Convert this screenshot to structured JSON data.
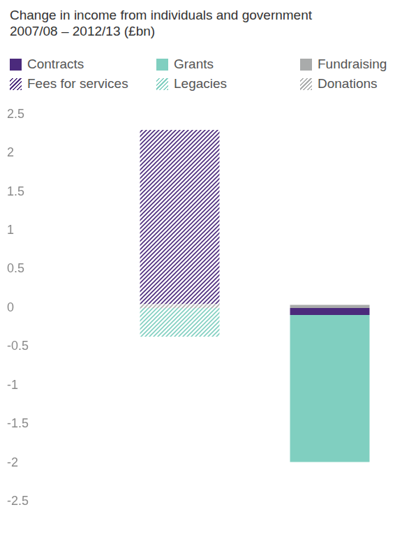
{
  "chart_data": {
    "type": "bar",
    "title": "Change in income from individuals and government 2007/08 – 2012/13 (£bn)",
    "categories": [
      null,
      null
    ],
    "series": [
      {
        "name": "Contracts",
        "color": "#4b2a7c",
        "values": [
          null,
          -0.09
        ]
      },
      {
        "name": "Fees for services",
        "color": "#4b2a7c",
        "line_style": "hatched",
        "values": [
          2.25,
          null
        ]
      },
      {
        "name": "Grants",
        "color": "#80cfc0",
        "values": [
          null,
          -1.9
        ]
      },
      {
        "name": "Legacies",
        "color": "#80cfc0",
        "line_style": "hatched",
        "values": [
          -0.37,
          null
        ]
      },
      {
        "name": "Fundraising",
        "color": "#a9abab",
        "values": [
          null,
          0.04
        ]
      },
      {
        "name": "Donations",
        "color": "#a9abab",
        "line_style": "hatched",
        "values": [
          0.05,
          null
        ]
      }
    ],
    "ylim": [
      -2.5,
      2.5
    ],
    "yticks": [
      -2.5,
      -2,
      -1.5,
      -1,
      -0.5,
      0,
      0.5,
      1,
      1.5,
      2,
      2.5
    ],
    "stacked": true,
    "grid": false,
    "legend": "top",
    "tick_labels": "y",
    "data_labels": false
  }
}
